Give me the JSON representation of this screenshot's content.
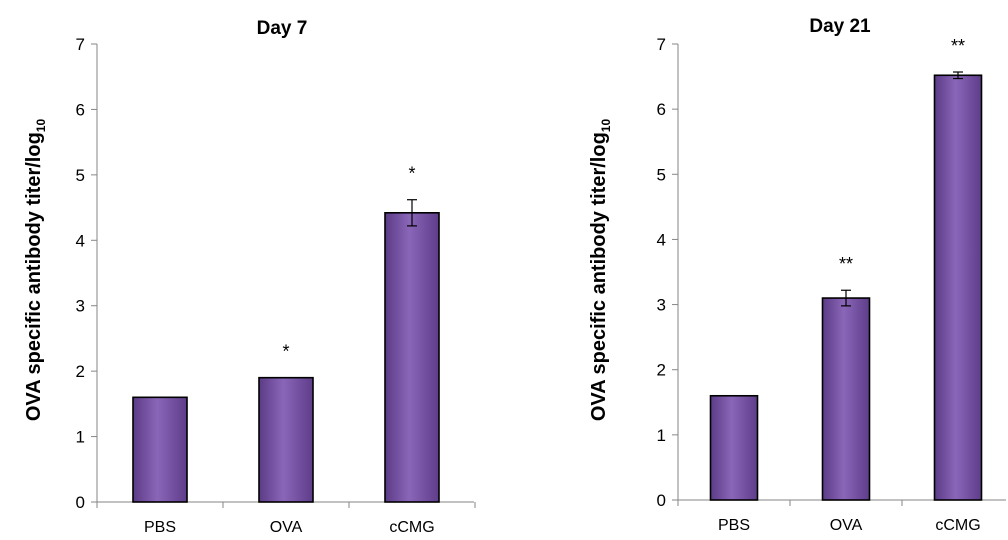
{
  "chart_data": [
    {
      "type": "bar",
      "title": "Day 7",
      "ylabel": "OVA specific antibody titer/log",
      "ylabel_subscript": "10",
      "xlabel": "",
      "categories": [
        "PBS",
        "OVA",
        "cCMG"
      ],
      "values": [
        1.6,
        1.9,
        4.42
      ],
      "errors": [
        0,
        0,
        0.2
      ],
      "significance": [
        "",
        "*",
        "*"
      ],
      "ylim": [
        0,
        7
      ],
      "yticks": [
        "0",
        "1",
        "2",
        "3",
        "4",
        "5",
        "6",
        "7"
      ],
      "grid": false,
      "bar_color": "#7a55a8"
    },
    {
      "type": "bar",
      "title": "Day 21",
      "ylabel": "OVA specific antibody titer/log",
      "ylabel_subscript": "10",
      "xlabel": "",
      "categories": [
        "PBS",
        "OVA",
        "cCMG"
      ],
      "values": [
        1.6,
        3.1,
        6.52
      ],
      "errors": [
        0,
        0.12,
        0.05
      ],
      "significance": [
        "",
        "**",
        "**"
      ],
      "ylim": [
        0,
        7
      ],
      "yticks": [
        "0",
        "1",
        "2",
        "3",
        "4",
        "5",
        "6",
        "7"
      ],
      "grid": false,
      "bar_color": "#7a55a8"
    }
  ]
}
